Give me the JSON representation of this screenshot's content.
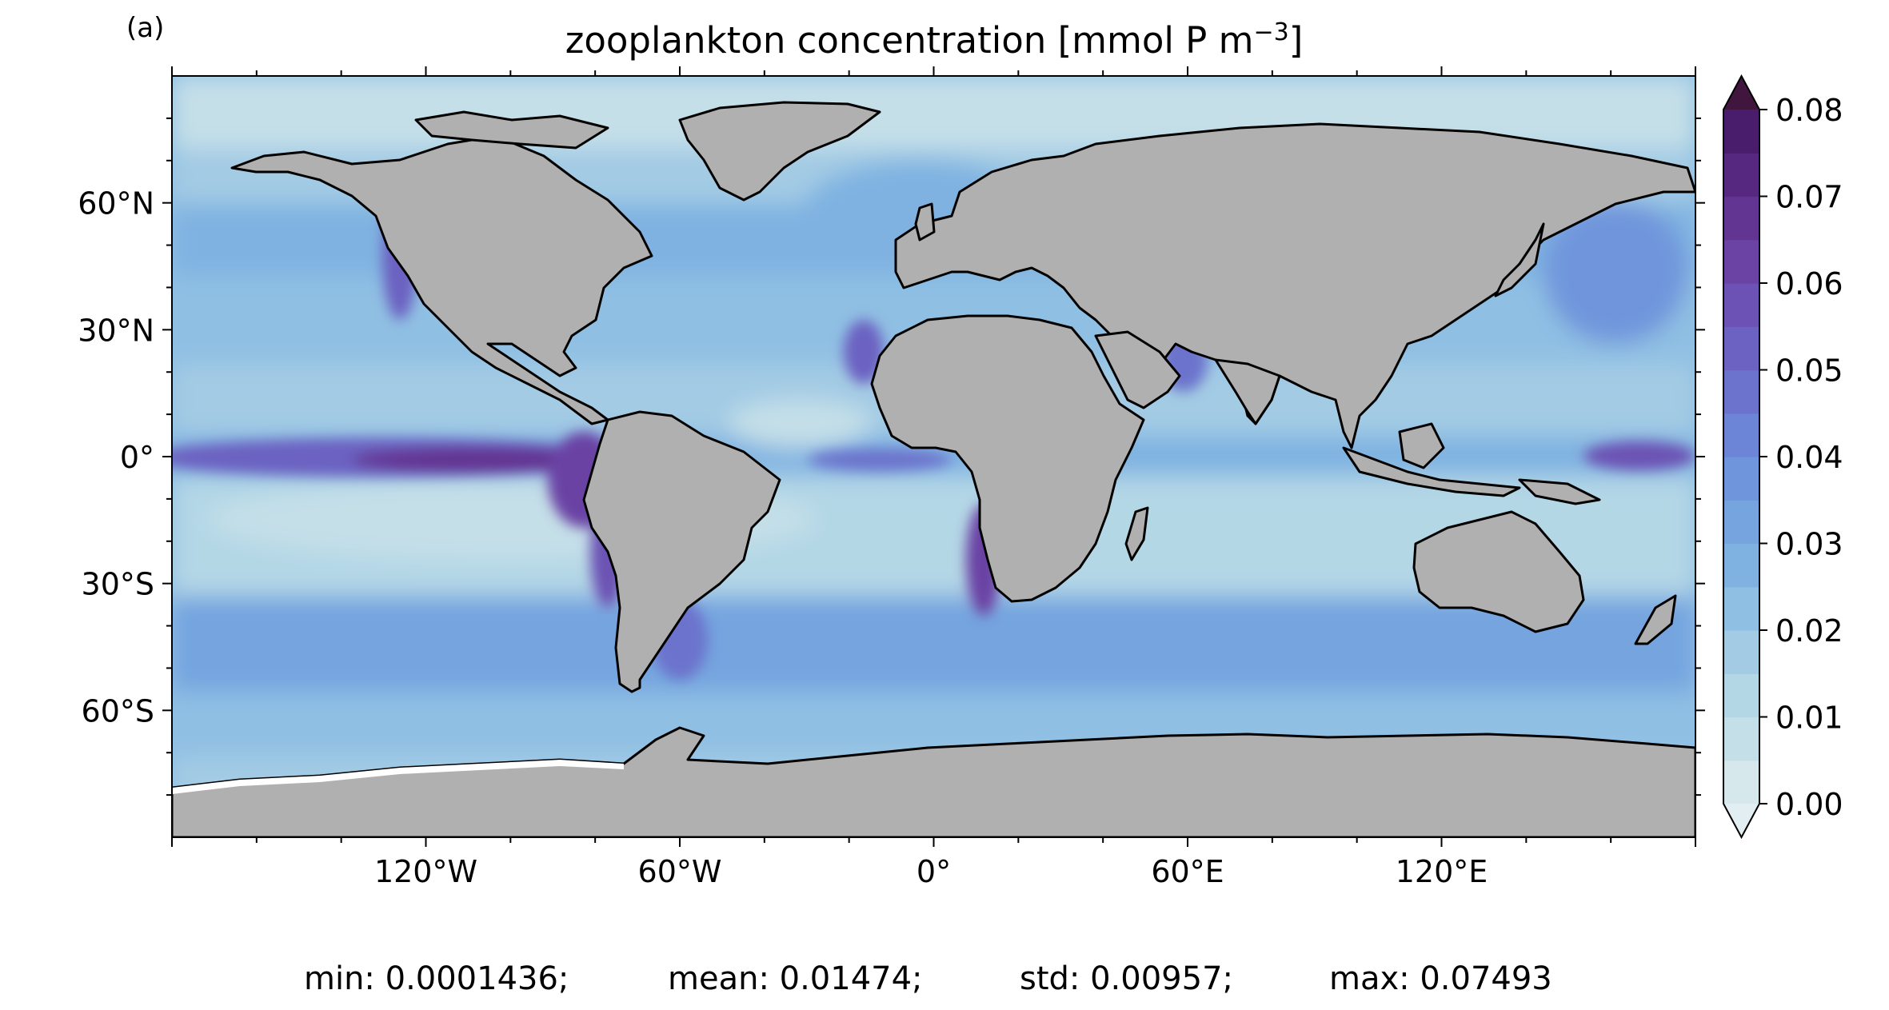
{
  "panel_label": "(a)",
  "title": {
    "main": "zooplankton concentration [mmol P m",
    "sup": "−3",
    "end": "]"
  },
  "map": {
    "projection": "PlateCarree",
    "lon_range": [
      -180,
      180
    ],
    "lat_range": [
      -90,
      90
    ],
    "land_color": "#b0b0b0",
    "coastline_color": "#000000"
  },
  "lat_ticks": [
    {
      "value": 60,
      "label": "60°N"
    },
    {
      "value": 30,
      "label": "30°N"
    },
    {
      "value": 0,
      "label": "0°"
    },
    {
      "value": -30,
      "label": "30°S"
    },
    {
      "value": -60,
      "label": "60°S"
    }
  ],
  "lon_ticks": [
    {
      "value": -120,
      "label": "120°W"
    },
    {
      "value": -60,
      "label": "60°W"
    },
    {
      "value": 0,
      "label": "0°"
    },
    {
      "value": 60,
      "label": "60°E"
    },
    {
      "value": 120,
      "label": "120°E"
    }
  ],
  "colorbar": {
    "min": 0.0,
    "max": 0.08,
    "extend": "both",
    "tick_labels": [
      {
        "value": 0.0,
        "label": "0.00"
      },
      {
        "value": 0.01,
        "label": "0.01"
      },
      {
        "value": 0.02,
        "label": "0.02"
      },
      {
        "value": 0.03,
        "label": "0.03"
      },
      {
        "value": 0.04,
        "label": "0.04"
      },
      {
        "value": 0.05,
        "label": "0.05"
      },
      {
        "value": 0.06,
        "label": "0.06"
      },
      {
        "value": 0.07,
        "label": "0.07"
      },
      {
        "value": 0.08,
        "label": "0.08"
      }
    ],
    "levels": 16,
    "colors": [
      "#d6e8ec",
      "#c4dfe8",
      "#b4d7e6",
      "#a3cbe4",
      "#8fbfe3",
      "#7fb2e1",
      "#75a4df",
      "#6f95dc",
      "#6c85d6",
      "#6b73cc",
      "#6c62c1",
      "#6c52b4",
      "#6a43a4",
      "#633593",
      "#572880",
      "#4a1d6c"
    ],
    "under_color": "#e2eef1",
    "over_color": "#40163f"
  },
  "stats": {
    "min": "min: 0.0001436;",
    "mean": "mean: 0.01474;",
    "std": "std: 0.00957;",
    "max": "max: 0.07493"
  }
}
